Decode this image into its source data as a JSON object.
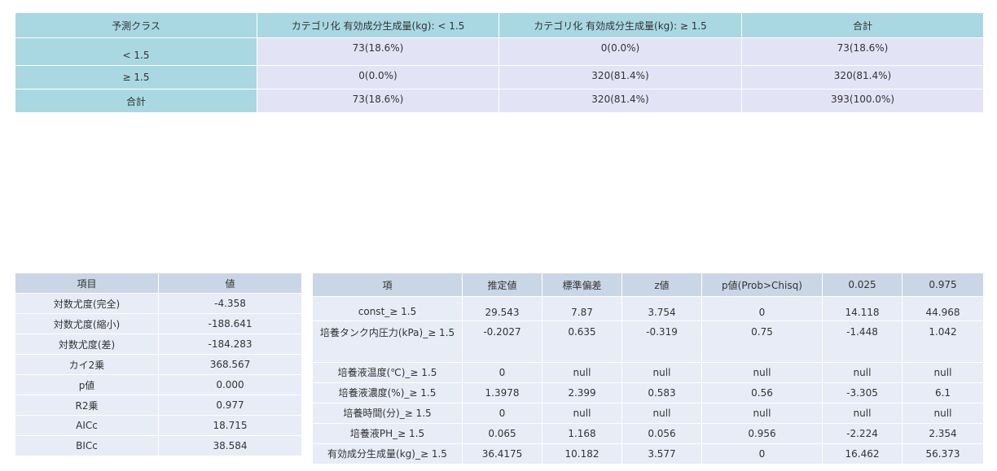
{
  "confusion_table": {
    "headers": [
      "予測クラス",
      "カテゴリ化 有効成分生成量(kg): < 1.5",
      "カテゴリ化 有効成分生成量(kg): ≥ 1.5",
      "合計"
    ],
    "rows": [
      [
        "< 1.5",
        "73(18.6%)",
        "0(0.0%)",
        "73(18.6%)"
      ],
      [
        "≥ 1.5",
        "0(0.0%)",
        "320(81.4%)",
        "320(81.4%)"
      ],
      [
        "合計",
        "73(18.6%)",
        "320(81.4%)",
        "393(100.0%)"
      ]
    ]
  },
  "fit_statistics": {
    "headers": [
      "項目",
      "値"
    ],
    "rows": [
      [
        "対数尤度(完全)",
        "-4.358"
      ],
      [
        "対数尤度(縮小)",
        "-188.641"
      ],
      [
        "対数尤度(差)",
        "-184.283"
      ],
      [
        "カイ2乗",
        "368.567"
      ],
      [
        "p値",
        "0.000"
      ],
      [
        "R2乗",
        "0.977"
      ],
      [
        "AICc",
        "18.715"
      ],
      [
        "BICc",
        "38.584"
      ]
    ]
  },
  "coefficients": {
    "headers": [
      "項",
      "推定値",
      "標準偏差",
      "z値",
      "p値(Prob>Chisq)",
      "0.025",
      "0.975"
    ],
    "rows": [
      [
        "const_≥ 1.5",
        "29.543",
        "7.87",
        "3.754",
        "0",
        "14.118",
        "44.968"
      ],
      [
        "培養タンク内圧力(kPa)_≥ 1.5",
        "-0.2027",
        "0.635",
        "-0.319",
        "0.75",
        "-1.448",
        "1.042"
      ],
      [
        "培養液温度(℃)_≥ 1.5",
        "0",
        "null",
        "null",
        "null",
        "null",
        "null"
      ],
      [
        "培養液濃度(%)_≥ 1.5",
        "1.3978",
        "2.399",
        "0.583",
        "0.56",
        "-3.305",
        "6.1"
      ],
      [
        "培養時間(分)_≥ 1.5",
        "0",
        "null",
        "null",
        "null",
        "null",
        "null"
      ],
      [
        "培養液PH_≥ 1.5",
        "0.065",
        "1.168",
        "0.056",
        "0.956",
        "-2.224",
        "2.354"
      ],
      [
        "有効成分生成量(kg)_≥ 1.5",
        "36.4175",
        "10.182",
        "3.577",
        "0",
        "16.462",
        "56.373"
      ]
    ]
  }
}
